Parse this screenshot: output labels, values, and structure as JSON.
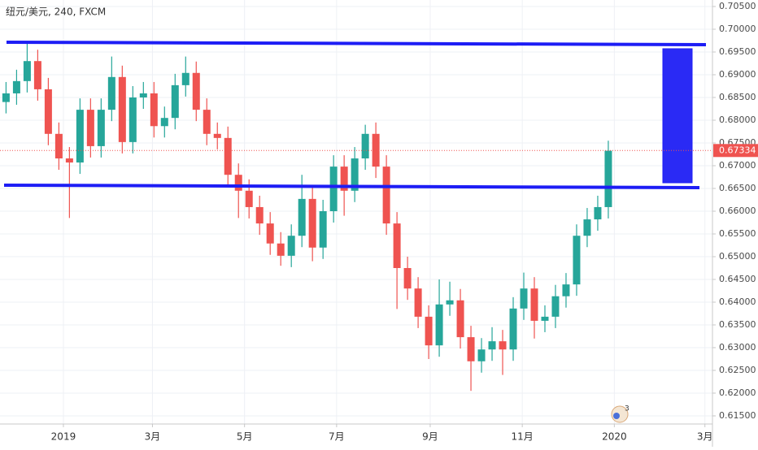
{
  "chart_data": {
    "type": "candlestick",
    "title": "纽元/美元, 240, FXCM",
    "x": [
      -38,
      -31,
      -24,
      -17,
      -10,
      -3,
      4,
      11,
      18,
      25,
      32,
      39,
      46,
      53,
      60,
      67,
      74,
      81,
      88,
      95,
      102,
      109,
      116,
      123,
      130,
      137,
      144,
      151,
      158,
      165,
      172,
      179,
      186,
      193,
      200,
      207,
      214,
      221,
      228,
      235,
      242,
      249,
      256,
      263,
      270,
      277,
      284,
      291,
      298,
      305,
      312,
      319,
      326,
      333,
      340,
      347,
      354,
      361
    ],
    "open": [
      0.684,
      0.6859,
      0.6886,
      0.693,
      0.6868,
      0.677,
      0.6716,
      0.6707,
      0.6823,
      0.6743,
      0.6823,
      0.6895,
      0.6752,
      0.685,
      0.6859,
      0.6787,
      0.6805,
      0.6877,
      0.6904,
      0.6823,
      0.677,
      0.6761,
      0.668,
      0.6645,
      0.6609,
      0.6573,
      0.6529,
      0.6502,
      0.6546,
      0.6627,
      0.652,
      0.66,
      0.6698,
      0.6645,
      0.6716,
      0.677,
      0.6698,
      0.6573,
      0.6475,
      0.643,
      0.6368,
      0.6305,
      0.6395,
      0.6404,
      0.6323,
      0.627,
      0.6296,
      0.6314,
      0.6296,
      0.6386,
      0.643,
      0.6359,
      0.6368,
      0.6413,
      0.6439,
      0.6546,
      0.6582,
      0.6609
    ],
    "high": [
      0.6884,
      0.6911,
      0.697,
      0.6955,
      0.6893,
      0.6795,
      0.6741,
      0.6848,
      0.6848,
      0.6848,
      0.694,
      0.692,
      0.6875,
      0.6884,
      0.6884,
      0.683,
      0.6902,
      0.694,
      0.6929,
      0.6848,
      0.6795,
      0.6786,
      0.6705,
      0.667,
      0.6634,
      0.6598,
      0.6554,
      0.6571,
      0.668,
      0.6652,
      0.6625,
      0.6723,
      0.6723,
      0.6741,
      0.679,
      0.6795,
      0.6723,
      0.6598,
      0.65,
      0.6455,
      0.6393,
      0.645,
      0.6445,
      0.6429,
      0.6348,
      0.6321,
      0.6345,
      0.6339,
      0.6411,
      0.6465,
      0.6455,
      0.6393,
      0.6438,
      0.6464,
      0.6571,
      0.6607,
      0.6634,
      0.6755
    ],
    "low": [
      0.6815,
      0.6834,
      0.6861,
      0.6843,
      0.6745,
      0.6691,
      0.6585,
      0.6682,
      0.6718,
      0.6718,
      0.6798,
      0.6727,
      0.6727,
      0.6825,
      0.6762,
      0.6762,
      0.678,
      0.6852,
      0.6798,
      0.6745,
      0.6736,
      0.6655,
      0.6585,
      0.6584,
      0.6548,
      0.6504,
      0.648,
      0.6477,
      0.6521,
      0.649,
      0.6495,
      0.6575,
      0.659,
      0.662,
      0.6691,
      0.6673,
      0.6548,
      0.6385,
      0.6405,
      0.6343,
      0.6275,
      0.628,
      0.637,
      0.6298,
      0.6205,
      0.6245,
      0.6271,
      0.624,
      0.6271,
      0.6361,
      0.632,
      0.6334,
      0.6343,
      0.6388,
      0.6414,
      0.6521,
      0.6557,
      0.6584
    ],
    "close": [
      0.6859,
      0.6886,
      0.693,
      0.6868,
      0.677,
      0.6716,
      0.6707,
      0.6823,
      0.6743,
      0.6823,
      0.6895,
      0.6752,
      0.685,
      0.6859,
      0.6787,
      0.6805,
      0.6877,
      0.6904,
      0.6823,
      0.677,
      0.6761,
      0.668,
      0.6645,
      0.6609,
      0.6573,
      0.6529,
      0.6502,
      0.6546,
      0.6627,
      0.652,
      0.66,
      0.6698,
      0.6645,
      0.6716,
      0.677,
      0.6698,
      0.6573,
      0.6475,
      0.643,
      0.6368,
      0.6305,
      0.6395,
      0.6404,
      0.6323,
      0.627,
      0.6296,
      0.6314,
      0.6296,
      0.6386,
      0.643,
      0.6359,
      0.6368,
      0.6413,
      0.6439,
      0.6546,
      0.6582,
      0.6609,
      0.6733
    ],
    "up_color": "#26a69a",
    "down_color": "#ef5350",
    "xlim": [
      -42,
      430
    ],
    "xticks": [
      {
        "value": 0,
        "label": "2019"
      },
      {
        "value": 59,
        "label": "3月"
      },
      {
        "value": 120,
        "label": "5月"
      },
      {
        "value": 181,
        "label": "7月"
      },
      {
        "value": 243,
        "label": "9月"
      },
      {
        "value": 304,
        "label": "11月"
      },
      {
        "value": 365,
        "label": "2020"
      },
      {
        "value": 425,
        "label": "3月"
      }
    ],
    "ylim": [
      0.61321,
      0.70643
    ],
    "yticks": [
      {
        "value": 0.615,
        "label": "0.61500"
      },
      {
        "value": 0.62,
        "label": "0.62000"
      },
      {
        "value": 0.625,
        "label": "0.62500"
      },
      {
        "value": 0.63,
        "label": "0.63000"
      },
      {
        "value": 0.635,
        "label": "0.63500"
      },
      {
        "value": 0.64,
        "label": "0.64000"
      },
      {
        "value": 0.645,
        "label": "0.64500"
      },
      {
        "value": 0.65,
        "label": "0.65000"
      },
      {
        "value": 0.655,
        "label": "0.65500"
      },
      {
        "value": 0.66,
        "label": "0.66000"
      },
      {
        "value": 0.665,
        "label": "0.66500"
      },
      {
        "value": 0.67,
        "label": "0.67000"
      },
      {
        "value": 0.675,
        "label": "0.67500"
      },
      {
        "value": 0.68,
        "label": "0.68000"
      },
      {
        "value": 0.685,
        "label": "0.68500"
      },
      {
        "value": 0.69,
        "label": "0.69000"
      },
      {
        "value": 0.695,
        "label": "0.69500"
      },
      {
        "value": 0.7,
        "label": "0.70000"
      },
      {
        "value": 0.705,
        "label": "0.70500"
      }
    ],
    "last_price": 0.67334,
    "badge": "3",
    "grid": true
  }
}
